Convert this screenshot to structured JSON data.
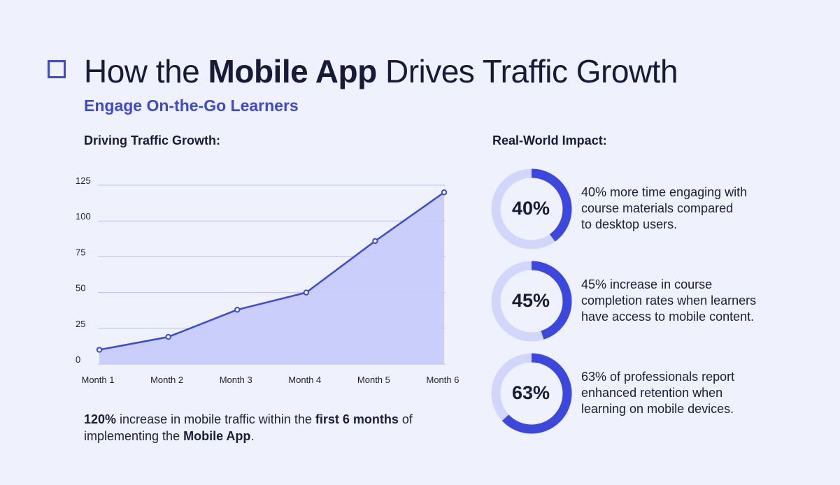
{
  "header": {
    "title_part1": "How the ",
    "title_bold": "Mobile App",
    "title_part2": " Drives Traffic Growth",
    "subtitle": "Engage On-the-Go Learners"
  },
  "left": {
    "heading": "Driving Traffic Growth:",
    "note": {
      "b1": "120%",
      "t1": " increase in mobile traffic within the ",
      "b2": "first 6 months",
      "t2": " of implementing the ",
      "b3": "Mobile App",
      "t3": "."
    }
  },
  "chart_data": {
    "type": "area",
    "categories": [
      "Month 1",
      "Month 2",
      "Month 3",
      "Month 4",
      "Month 5",
      "Month 6"
    ],
    "values": [
      10,
      19,
      38,
      50,
      86,
      120
    ],
    "yticks": [
      0,
      25,
      50,
      75,
      100,
      125
    ],
    "ylim": [
      0,
      125
    ],
    "grid": true,
    "colors": {
      "line": "#3b48e0",
      "fill": "#c6cbfa",
      "grid": "#b9bff2"
    }
  },
  "right": {
    "heading": "Real-World Impact:",
    "stats": [
      {
        "value": 40,
        "label": "40%",
        "lines": [
          "40% more time engaging with",
          "course materials compared",
          "to desktop users."
        ]
      },
      {
        "value": 45,
        "label": "45%",
        "lines": [
          "45% increase in course",
          "completion rates when learners",
          "have access to mobile content."
        ]
      },
      {
        "value": 63,
        "label": "63%",
        "lines": [
          "63% of professionals report",
          "enhanced retention when",
          "learning on mobile devices."
        ]
      }
    ],
    "colors": {
      "ring_track": "#d2d6fb",
      "ring_fill": "#3b48e0"
    }
  }
}
